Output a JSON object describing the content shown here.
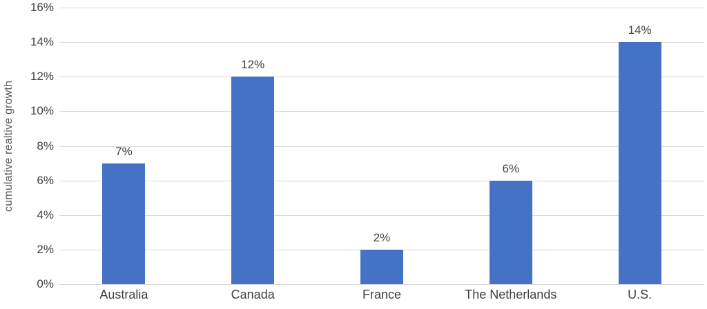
{
  "chart_data": {
    "type": "bar",
    "title": "",
    "categories": [
      "Australia",
      "Canada",
      "France",
      "The Netherlands",
      "U.S."
    ],
    "values": [
      7,
      12,
      2,
      6,
      14
    ],
    "bar_labels": [
      "7%",
      "12%",
      "2%",
      "6%",
      "14%"
    ],
    "xlabel": "",
    "ylabel": "cumulative realtive growth",
    "ylim": [
      0,
      16
    ],
    "ytick_values": [
      0,
      2,
      4,
      6,
      8,
      10,
      12,
      14,
      16
    ],
    "ytick_labels": [
      "0%",
      "2%",
      "4%",
      "6%",
      "8%",
      "10%",
      "12%",
      "14%",
      "16%"
    ],
    "grid": true,
    "legend": false,
    "layout": {
      "legend_position": "none",
      "bar_color": "#4472C4",
      "gridline_color": "#D9D9D9",
      "text_color": "#404040",
      "background_color": "#FFFFFF"
    }
  }
}
